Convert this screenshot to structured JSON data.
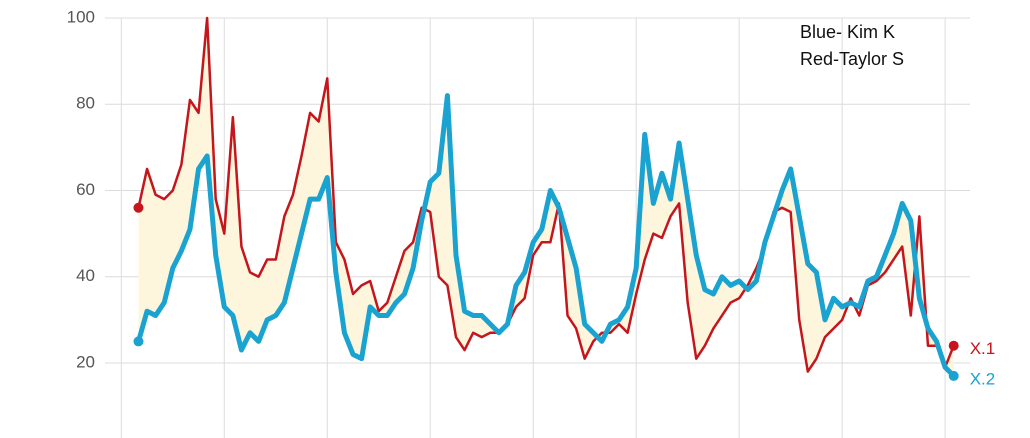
{
  "chart_data": {
    "type": "line",
    "annotations": [
      "Blue- Kim K",
      "Red-Taylor S"
    ],
    "x": [
      2,
      3,
      4,
      5,
      6,
      7,
      8,
      9,
      10,
      11,
      12,
      13,
      14,
      15,
      16,
      17,
      18,
      19,
      20,
      21,
      22,
      23,
      24,
      25,
      26,
      27,
      28,
      29,
      30,
      31,
      32,
      33,
      34,
      35,
      36,
      37,
      38,
      39,
      40,
      41,
      42,
      43,
      44,
      45,
      46,
      47,
      48,
      49,
      50,
      51,
      52,
      53,
      54,
      55,
      56,
      57,
      58,
      59,
      60,
      61,
      62,
      63,
      64,
      65,
      66,
      67,
      68,
      69,
      70,
      71,
      72,
      73,
      74,
      75,
      76,
      77,
      78,
      79,
      80,
      81,
      82,
      83,
      84,
      85,
      86,
      87,
      88,
      89,
      90,
      91,
      92,
      93,
      94,
      95,
      96,
      97
    ],
    "series": [
      {
        "name": "X.1",
        "color": "#c4161c",
        "values": [
          56,
          65,
          59,
          58,
          60,
          66,
          81,
          78,
          100,
          58,
          50,
          77,
          47,
          41,
          40,
          44,
          44,
          54,
          59,
          68,
          78,
          76,
          86,
          48,
          44,
          36,
          38,
          39,
          32,
          34,
          40,
          46,
          48,
          56,
          55,
          40,
          38,
          26,
          23,
          27,
          26,
          27,
          27,
          29,
          33,
          35,
          45,
          48,
          48,
          57,
          31,
          28,
          21,
          25,
          27,
          27,
          29,
          27,
          36,
          44,
          50,
          49,
          54,
          57,
          34,
          21,
          24,
          28,
          31,
          34,
          35,
          38,
          42,
          47,
          55,
          56,
          55,
          30,
          18,
          21,
          26,
          28,
          30,
          35,
          31,
          38,
          39,
          41,
          44,
          47,
          31,
          54,
          24,
          24,
          19,
          24
        ]
      },
      {
        "name": "X.2",
        "color": "#1aa3d0",
        "values": [
          25,
          32,
          31,
          34,
          42,
          46,
          51,
          65,
          68,
          45,
          33,
          31,
          23,
          27,
          25,
          30,
          31,
          34,
          42,
          50,
          58,
          58,
          63,
          41,
          27,
          22,
          21,
          33,
          31,
          31,
          34,
          36,
          42,
          53,
          62,
          64,
          82,
          45,
          32,
          31,
          31,
          29,
          27,
          29,
          38,
          41,
          48,
          51,
          60,
          56,
          49,
          42,
          29,
          27,
          25,
          29,
          30,
          33,
          42,
          73,
          57,
          64,
          58,
          71,
          58,
          45,
          37,
          36,
          40,
          38,
          39,
          37,
          39,
          48,
          54,
          60,
          65,
          54,
          43,
          41,
          30,
          35,
          33,
          34,
          33,
          39,
          40,
          45,
          50,
          57,
          53,
          35,
          28,
          25,
          19,
          17
        ]
      }
    ],
    "fill_between_color": "#fdf5dc",
    "xlim": [
      -1.9,
      98.9
    ],
    "xticks": [
      0,
      12,
      24,
      36,
      48,
      60,
      72,
      84,
      96
    ],
    "ylim": [
      2.6,
      100
    ],
    "yticks": [
      20,
      40,
      60,
      80,
      100
    ],
    "grid": true
  }
}
